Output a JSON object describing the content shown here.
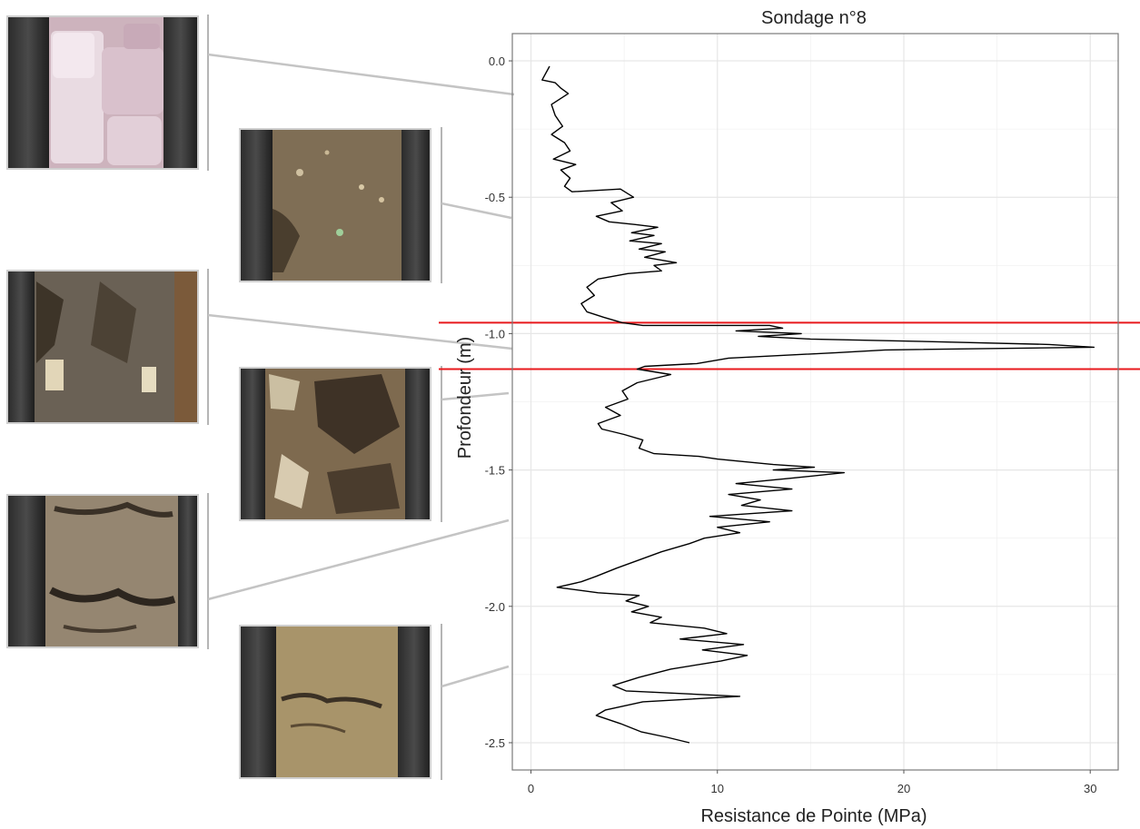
{
  "chart_data": {
    "type": "line",
    "title": "Sondage n°8",
    "xlabel": "Resistance de Pointe (MPa)",
    "ylabel": "Profondeur (m)",
    "xlim": [
      -1,
      31.5
    ],
    "ylim": [
      -2.6,
      0.1
    ],
    "x_ticks": [
      0,
      10,
      20,
      30
    ],
    "y_ticks": [
      0.0,
      -0.5,
      -1.0,
      -1.5,
      -2.0,
      -2.5
    ],
    "x_tick_labels": [
      "0",
      "10",
      "20",
      "30"
    ],
    "y_tick_labels": [
      "0.0",
      "-0.5",
      "-1.0",
      "-1.5",
      "-2.0",
      "-2.5"
    ],
    "grid": true,
    "reference_lines": [
      {
        "orientation": "horizontal",
        "y": -0.96,
        "color": "#e8191c"
      },
      {
        "orientation": "horizontal",
        "y": -1.13,
        "color": "#e8191c"
      }
    ],
    "series": [
      {
        "line_color": "#000000",
        "points": [
          [
            1.0,
            -0.02
          ],
          [
            0.6,
            -0.07
          ],
          [
            1.3,
            -0.08
          ],
          [
            1.6,
            -0.1
          ],
          [
            2.0,
            -0.12
          ],
          [
            1.1,
            -0.16
          ],
          [
            1.3,
            -0.2
          ],
          [
            1.7,
            -0.24
          ],
          [
            1.1,
            -0.27
          ],
          [
            1.8,
            -0.3
          ],
          [
            2.1,
            -0.33
          ],
          [
            1.2,
            -0.36
          ],
          [
            2.4,
            -0.38
          ],
          [
            1.6,
            -0.4
          ],
          [
            2.1,
            -0.43
          ],
          [
            1.8,
            -0.46
          ],
          [
            2.2,
            -0.48
          ],
          [
            4.8,
            -0.47
          ],
          [
            5.5,
            -0.5
          ],
          [
            4.3,
            -0.52
          ],
          [
            4.9,
            -0.55
          ],
          [
            3.5,
            -0.57
          ],
          [
            4.2,
            -0.59
          ],
          [
            5.6,
            -0.6
          ],
          [
            6.8,
            -0.61
          ],
          [
            5.4,
            -0.63
          ],
          [
            6.6,
            -0.64
          ],
          [
            5.3,
            -0.66
          ],
          [
            7.0,
            -0.67
          ],
          [
            5.8,
            -0.69
          ],
          [
            7.2,
            -0.7
          ],
          [
            6.1,
            -0.72
          ],
          [
            7.8,
            -0.74
          ],
          [
            6.6,
            -0.75
          ],
          [
            7.0,
            -0.77
          ],
          [
            5.2,
            -0.78
          ],
          [
            3.6,
            -0.8
          ],
          [
            3.0,
            -0.83
          ],
          [
            3.4,
            -0.86
          ],
          [
            2.7,
            -0.89
          ],
          [
            3.0,
            -0.92
          ],
          [
            3.9,
            -0.94
          ],
          [
            4.9,
            -0.96
          ],
          [
            6.0,
            -0.97
          ],
          [
            9.6,
            -0.97
          ],
          [
            12.8,
            -0.97
          ],
          [
            13.5,
            -0.98
          ],
          [
            11.0,
            -0.99
          ],
          [
            14.5,
            -1.0
          ],
          [
            12.2,
            -1.01
          ],
          [
            15.0,
            -1.02
          ],
          [
            21.8,
            -1.03
          ],
          [
            27.8,
            -1.04
          ],
          [
            30.2,
            -1.05
          ],
          [
            19.0,
            -1.06
          ],
          [
            16.4,
            -1.07
          ],
          [
            10.6,
            -1.09
          ],
          [
            8.9,
            -1.11
          ],
          [
            6.1,
            -1.12
          ],
          [
            5.7,
            -1.13
          ],
          [
            7.5,
            -1.15
          ],
          [
            5.7,
            -1.18
          ],
          [
            4.9,
            -1.21
          ],
          [
            5.2,
            -1.24
          ],
          [
            4.0,
            -1.27
          ],
          [
            4.8,
            -1.3
          ],
          [
            3.6,
            -1.33
          ],
          [
            3.8,
            -1.35
          ],
          [
            5.0,
            -1.37
          ],
          [
            6.0,
            -1.39
          ],
          [
            5.8,
            -1.42
          ],
          [
            6.6,
            -1.44
          ],
          [
            9.0,
            -1.45
          ],
          [
            10.0,
            -1.46
          ],
          [
            13.0,
            -1.48
          ],
          [
            15.2,
            -1.49
          ],
          [
            13.0,
            -1.5
          ],
          [
            16.8,
            -1.51
          ],
          [
            14.0,
            -1.53
          ],
          [
            11.0,
            -1.55
          ],
          [
            14.0,
            -1.57
          ],
          [
            10.6,
            -1.59
          ],
          [
            12.3,
            -1.61
          ],
          [
            11.3,
            -1.63
          ],
          [
            14.0,
            -1.65
          ],
          [
            9.6,
            -1.67
          ],
          [
            12.8,
            -1.69
          ],
          [
            10.0,
            -1.71
          ],
          [
            11.2,
            -1.73
          ],
          [
            9.3,
            -1.75
          ],
          [
            8.5,
            -1.77
          ],
          [
            7.0,
            -1.8
          ],
          [
            5.8,
            -1.83
          ],
          [
            4.6,
            -1.86
          ],
          [
            3.5,
            -1.89
          ],
          [
            2.7,
            -1.91
          ],
          [
            1.4,
            -1.93
          ],
          [
            3.6,
            -1.95
          ],
          [
            5.8,
            -1.96
          ],
          [
            5.1,
            -1.98
          ],
          [
            6.3,
            -2.0
          ],
          [
            5.4,
            -2.02
          ],
          [
            7.0,
            -2.04
          ],
          [
            6.4,
            -2.06
          ],
          [
            9.3,
            -2.08
          ],
          [
            10.5,
            -2.1
          ],
          [
            8.0,
            -2.12
          ],
          [
            11.4,
            -2.14
          ],
          [
            9.2,
            -2.16
          ],
          [
            11.6,
            -2.18
          ],
          [
            10.2,
            -2.2
          ],
          [
            7.5,
            -2.23
          ],
          [
            5.8,
            -2.26
          ],
          [
            4.4,
            -2.29
          ],
          [
            5.1,
            -2.31
          ],
          [
            11.2,
            -2.33
          ],
          [
            6.0,
            -2.35
          ],
          [
            4.0,
            -2.38
          ],
          [
            3.5,
            -2.4
          ],
          [
            4.8,
            -2.43
          ],
          [
            5.9,
            -2.46
          ],
          [
            7.3,
            -2.48
          ],
          [
            8.5,
            -2.5
          ]
        ]
      }
    ]
  },
  "photos": [
    {
      "tone": "pale-pink-rock"
    },
    {
      "tone": "brown-gravelly"
    },
    {
      "tone": "grey-dark-mix"
    },
    {
      "tone": "brown-blocky"
    },
    {
      "tone": "brown-grey-clay"
    },
    {
      "tone": "tan-silt"
    }
  ]
}
